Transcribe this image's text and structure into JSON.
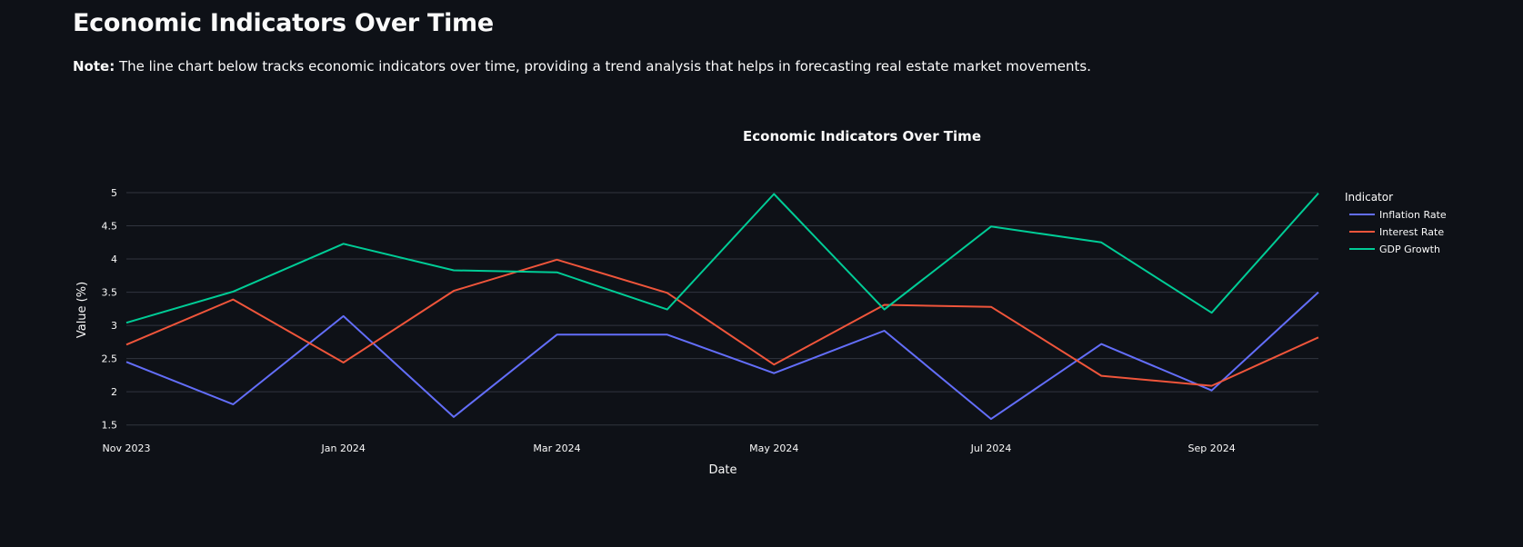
{
  "page": {
    "title": "Economic Indicators Over Time",
    "note_label": "Note:",
    "note_text": " The line chart below tracks economic indicators over time, providing a trend analysis that helps in forecasting real estate market movements."
  },
  "colors": {
    "background": "#0e1117",
    "grid": "#31353f",
    "text": "#fafafa"
  },
  "chart_data": {
    "type": "line",
    "title": "Economic Indicators Over Time",
    "xlabel": "Date",
    "ylabel": "Value (%)",
    "legend_title": "Indicator",
    "legend_position": "top-right",
    "grid": true,
    "x": [
      "2023-11-01",
      "2023-12-01",
      "2024-01-01",
      "2024-02-01",
      "2024-03-01",
      "2024-04-01",
      "2024-05-01",
      "2024-06-01",
      "2024-07-01",
      "2024-08-01",
      "2024-09-01",
      "2024-10-01"
    ],
    "xlim": [
      "2023-11-01",
      "2024-10-01"
    ],
    "x_ticks": [
      {
        "date": "2023-11-01",
        "label": "Nov 2023"
      },
      {
        "date": "2024-01-01",
        "label": "Jan 2024"
      },
      {
        "date": "2024-03-01",
        "label": "Mar 2024"
      },
      {
        "date": "2024-05-01",
        "label": "May 2024"
      },
      {
        "date": "2024-07-01",
        "label": "Jul 2024"
      },
      {
        "date": "2024-09-01",
        "label": "Sep 2024"
      }
    ],
    "ylim": [
      1.4,
      5.0
    ],
    "y_ticks": [
      {
        "value": 1.5,
        "label": "1.5"
      },
      {
        "value": 2,
        "label": "2"
      },
      {
        "value": 2.5,
        "label": "2.5"
      },
      {
        "value": 3,
        "label": "3"
      },
      {
        "value": 3.5,
        "label": "3.5"
      },
      {
        "value": 4,
        "label": "4"
      },
      {
        "value": 4.5,
        "label": "4.5"
      },
      {
        "value": 5,
        "label": "5"
      }
    ],
    "series": [
      {
        "name": "Inflation Rate",
        "color": "#636efa",
        "values": [
          2.45,
          1.81,
          3.14,
          1.62,
          2.86,
          2.86,
          2.28,
          2.92,
          1.59,
          2.72,
          2.02,
          3.5
        ]
      },
      {
        "name": "Interest Rate",
        "color": "#ef553b",
        "values": [
          2.71,
          3.39,
          2.44,
          3.52,
          3.99,
          3.49,
          2.41,
          3.31,
          3.28,
          2.24,
          2.09,
          2.82
        ]
      },
      {
        "name": "GDP Growth",
        "color": "#00cc96",
        "values": [
          3.04,
          3.51,
          4.23,
          3.83,
          3.8,
          3.24,
          4.98,
          3.24,
          4.49,
          4.25,
          3.19,
          4.99
        ]
      }
    ]
  }
}
